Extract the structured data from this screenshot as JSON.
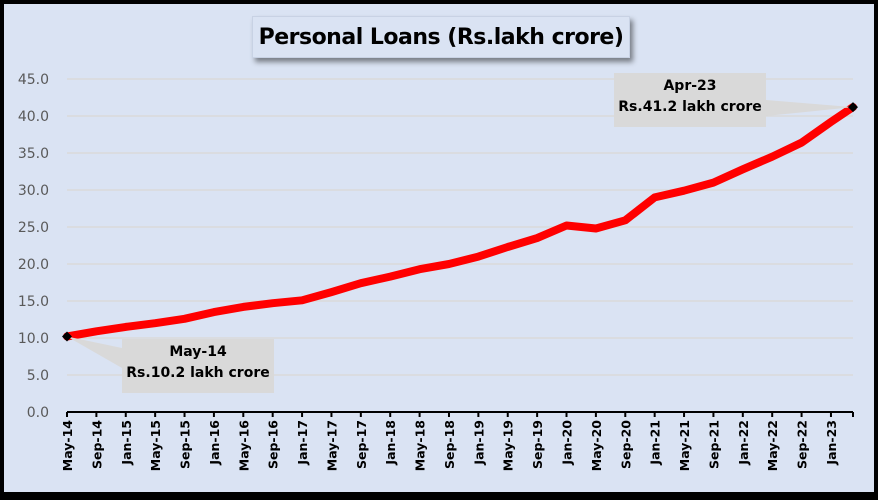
{
  "chart_data": {
    "type": "line",
    "title": "Personal Loans (Rs.lakh crore)",
    "xlabel": "",
    "ylabel": "",
    "ylim": [
      0,
      45
    ],
    "yticks": [
      "0.0",
      "5.0",
      "10.0",
      "15.0",
      "20.0",
      "25.0",
      "30.0",
      "35.0",
      "40.0",
      "45.0"
    ],
    "grid": "horizontal",
    "legend": "none",
    "series_color": "#ff0000",
    "x_tick_labels": [
      "May-14",
      "Sep-14",
      "Jan-15",
      "May-15",
      "Sep-15",
      "Jan-16",
      "May-16",
      "Sep-16",
      "Jan-17",
      "May-17",
      "Sep-17",
      "Jan-18",
      "May-18",
      "Sep-18",
      "Jan-19",
      "May-19",
      "Sep-19",
      "Jan-20",
      "May-20",
      "Sep-20",
      "Jan-21",
      "May-21",
      "Sep-21",
      "Jan-22",
      "May-22",
      "Sep-22",
      "Jan-23"
    ],
    "series": [
      {
        "name": "Personal Loans",
        "x": [
          "May-14",
          "Sep-14",
          "Jan-15",
          "May-15",
          "Sep-15",
          "Jan-16",
          "May-16",
          "Sep-16",
          "Jan-17",
          "May-17",
          "Sep-17",
          "Jan-18",
          "May-18",
          "Sep-18",
          "Jan-19",
          "May-19",
          "Sep-19",
          "Jan-20",
          "May-20",
          "Sep-20",
          "Jan-21",
          "May-21",
          "Sep-21",
          "Jan-22",
          "May-22",
          "Sep-22",
          "Jan-23",
          "Apr-23"
        ],
        "values": [
          10.2,
          10.9,
          11.5,
          12.0,
          12.6,
          13.5,
          14.2,
          14.7,
          15.1,
          16.2,
          17.4,
          18.3,
          19.3,
          20.0,
          21.0,
          22.3,
          23.5,
          25.2,
          24.8,
          25.9,
          29.0,
          29.9,
          31.0,
          32.8,
          34.5,
          36.4,
          39.2,
          41.2
        ]
      }
    ],
    "annotations": [
      {
        "label_line1": "May-14",
        "label_line2": "Rs.10.2 lakh crore",
        "x": "May-14",
        "y": 10.2
      },
      {
        "label_line1": "Apr-23",
        "label_line2": "Rs.41.2 lakh crore",
        "x": "Apr-23",
        "y": 41.2
      }
    ]
  }
}
